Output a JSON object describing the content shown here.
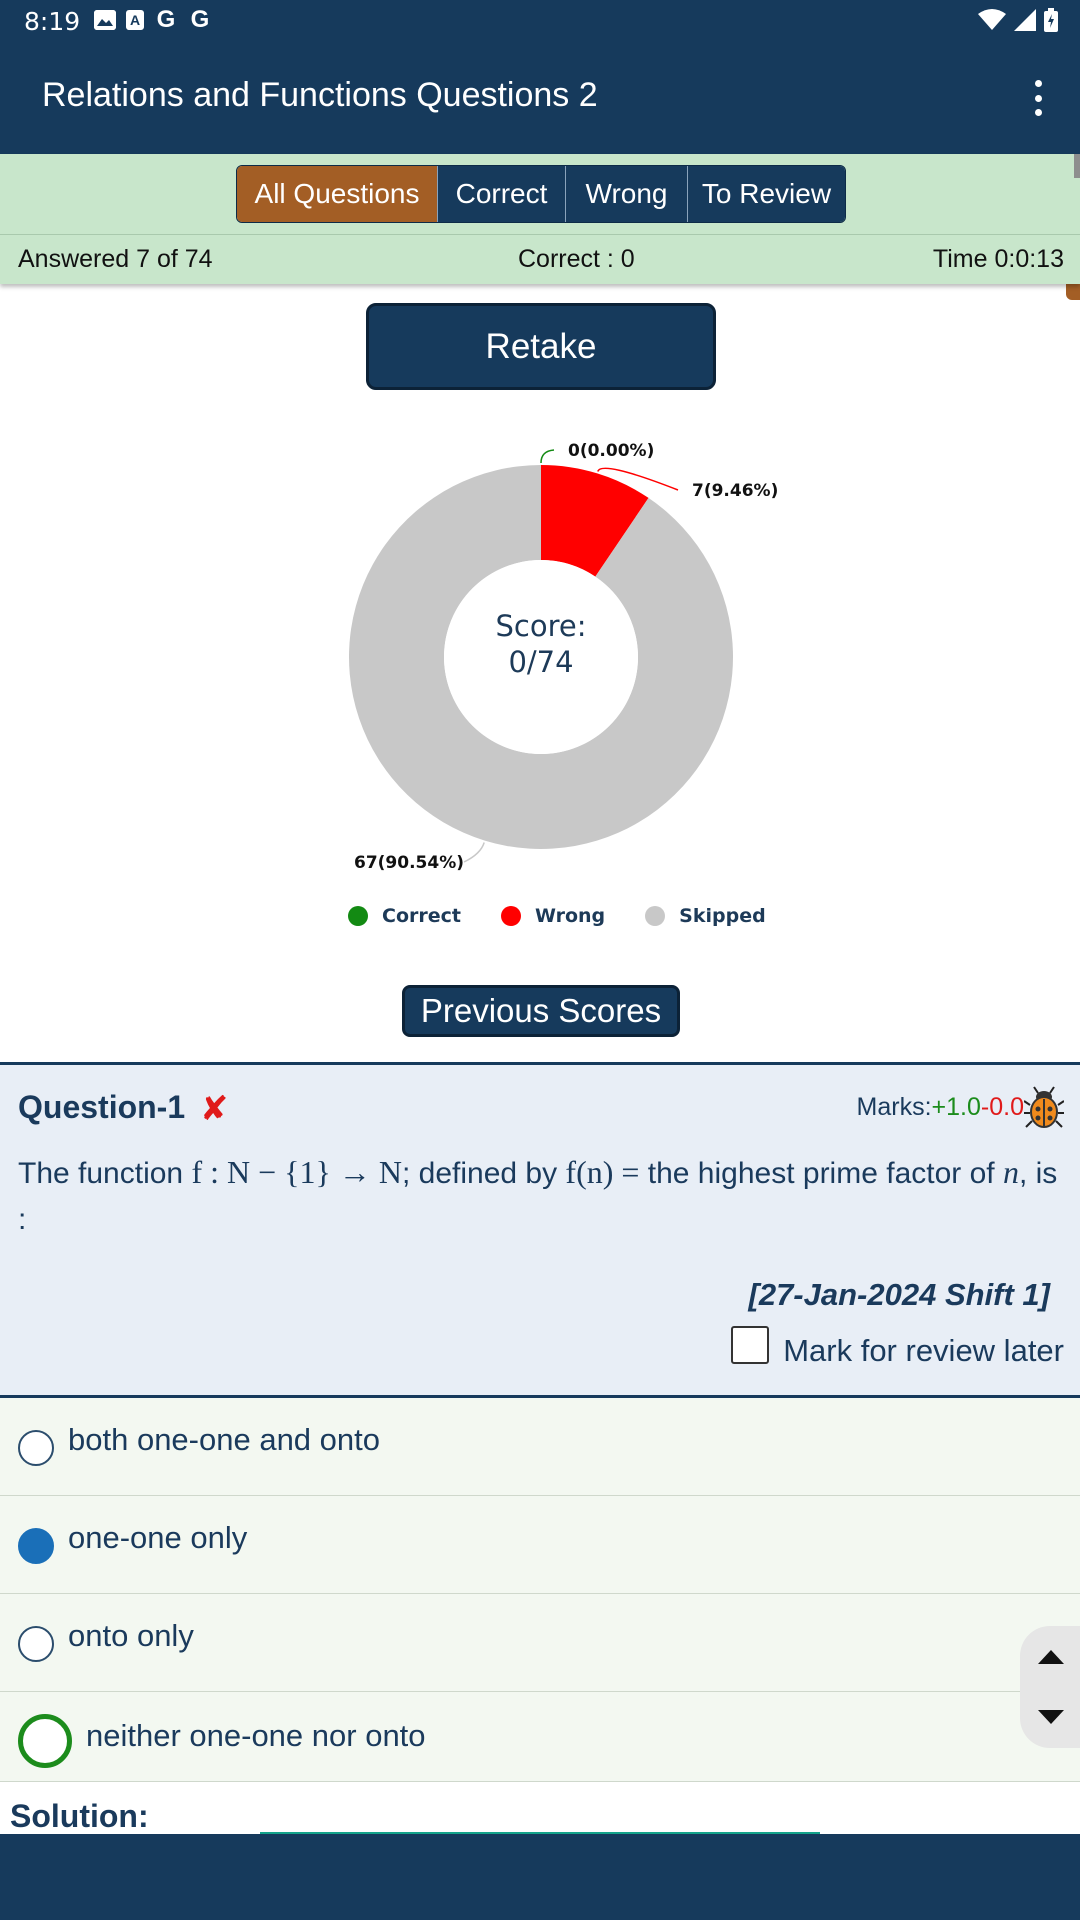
{
  "status_bar": {
    "time": "8:19"
  },
  "app_bar": {
    "title": "Relations and Functions Questions 2"
  },
  "filters": {
    "tabs": [
      {
        "label": "All Questions"
      },
      {
        "label": "Correct"
      },
      {
        "label": "Wrong"
      },
      {
        "label": "To Review"
      }
    ],
    "active_tab": "All Questions"
  },
  "summary": {
    "answered": "Answered 7 of 74",
    "correct": "Correct : 0",
    "time": "Time 0:0:13"
  },
  "retake_label": "Retake",
  "chart_data": {
    "type": "pie",
    "donut": true,
    "center_label_line1": "Score:",
    "center_label_line2": "0/74",
    "slices": [
      {
        "name": "Correct",
        "value": 0,
        "label": "0(0.00%)",
        "color": "#138a13"
      },
      {
        "name": "Wrong",
        "value": 7,
        "label": "7(9.46%)",
        "color": "#ff0000"
      },
      {
        "name": "Skipped",
        "value": 67,
        "label": "67(90.54%)",
        "color": "#c8c8c8"
      }
    ],
    "legend": [
      "Correct",
      "Wrong",
      "Skipped"
    ],
    "legend_position": "bottom"
  },
  "previous_scores_label": "Previous Scores",
  "question": {
    "title": "Question-1",
    "status_icon": "✘",
    "marks_prefix": "Marks:",
    "marks_plus": "+1.0",
    "marks_minus": "-0.0",
    "text_intro": "The function ",
    "text_math1": "f : N − {1} → N",
    "text_mid": "; defined by ",
    "text_math2": "f(n) =",
    "text_after": "  the highest prime factor of ",
    "text_var": "n",
    "text_end": ", is :",
    "source": "[27-Jan-2024 Shift 1]",
    "review_label": "Mark for review later"
  },
  "options": [
    {
      "label": "both one-one and onto"
    },
    {
      "label": "one-one only"
    },
    {
      "label": "onto only"
    },
    {
      "label": "neither one-one nor onto"
    }
  ],
  "solution_label": "Solution:",
  "colors": {
    "primary": "#163a5c",
    "accent": "#a35e25",
    "panel": "#c8e6cb",
    "correct": "#138a13",
    "wrong": "#ff0000",
    "skipped": "#c8c8c8"
  }
}
